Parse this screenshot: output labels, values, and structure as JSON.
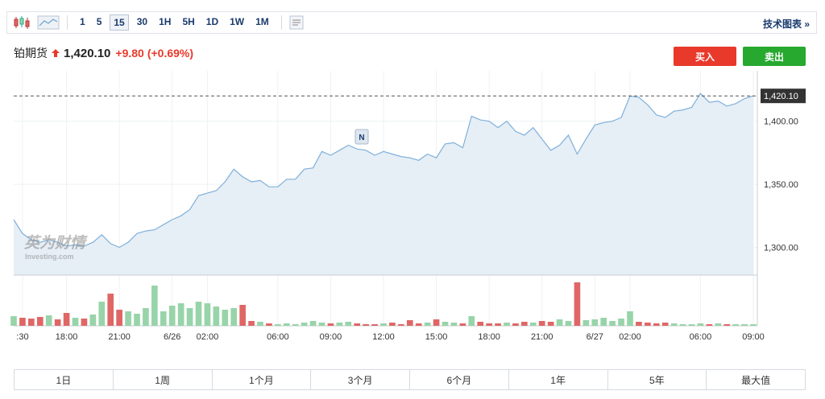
{
  "toolbar": {
    "intervals": [
      "1",
      "5",
      "15",
      "30",
      "1H",
      "5H",
      "1D",
      "1W",
      "1M"
    ],
    "active": "15",
    "link": "技术图表 »"
  },
  "header": {
    "name": "铂期货",
    "price": "1,420.10",
    "change": "+9.80",
    "change_pct": "(+0.69%)",
    "buy": "买入",
    "sell": "卖出"
  },
  "watermark": {
    "brand": "英为财情",
    "site": "Investing.com"
  },
  "annotation": "N",
  "periods": [
    "1日",
    "1周",
    "1个月",
    "3个月",
    "6个月",
    "1年",
    "5年",
    "最大值"
  ],
  "chart_data": {
    "type": "area",
    "color": "#7fb0d9",
    "fill": "#e6eef6",
    "grid": true,
    "categories": [
      null,
      ":30",
      null,
      null,
      null,
      null,
      "18:00",
      null,
      null,
      null,
      null,
      null,
      "21:00",
      null,
      null,
      null,
      null,
      null,
      "6/26",
      null,
      null,
      null,
      "02:00",
      null,
      null,
      null,
      null,
      null,
      null,
      null,
      "06:00",
      null,
      null,
      null,
      null,
      null,
      "09:00",
      null,
      null,
      null,
      null,
      null,
      "12:00",
      null,
      null,
      null,
      null,
      null,
      "15:00",
      null,
      null,
      null,
      null,
      null,
      "18:00",
      null,
      null,
      null,
      null,
      null,
      "21:00",
      null,
      null,
      null,
      null,
      null,
      "6/27",
      null,
      null,
      null,
      "02:00",
      null,
      null,
      null,
      null,
      null,
      null,
      null,
      "06:00",
      null,
      null,
      null,
      null,
      null,
      "09:00"
    ],
    "values": [
      1322,
      1311,
      1306,
      1304,
      1306,
      1304,
      1301,
      1302,
      1301,
      1304,
      1310,
      1303,
      1300,
      1304,
      1311,
      1313,
      1314,
      1318,
      1322,
      1325,
      1330,
      1341,
      1343,
      1345,
      1352,
      1362,
      1356,
      1352,
      1353,
      1348,
      1348,
      1354,
      1354,
      1362,
      1363,
      1376,
      1373,
      1377,
      1381,
      1378,
      1377,
      1373,
      1376,
      1374,
      1372,
      1371,
      1369,
      1374,
      1371,
      1382,
      1383,
      1379,
      1404,
      1401,
      1400,
      1395,
      1400,
      1392,
      1389,
      1395,
      1386,
      1377,
      1381,
      1389,
      1374,
      1386,
      1397,
      1399,
      1400,
      1403,
      1420,
      1419,
      1413,
      1405,
      1403,
      1408,
      1409,
      1411,
      1422,
      1415,
      1416,
      1412,
      1414,
      1418,
      1420.1
    ],
    "ylim": [
      1278,
      1440
    ],
    "yticks": [
      {
        "value": 1300,
        "label": "1,300.00"
      },
      {
        "value": 1350,
        "label": "1,350.00"
      },
      {
        "value": 1400,
        "label": "1,400.00"
      }
    ],
    "last_price": {
      "value": 1420.1,
      "label": "1,420.10"
    },
    "volume": {
      "axis": "y2",
      "up_color": "#98d4a9",
      "down_color": "#e06666",
      "values": [
        12,
        10,
        9,
        11,
        13,
        8,
        16,
        10,
        9,
        14,
        30,
        40,
        20,
        18,
        15,
        22,
        50,
        18,
        25,
        28,
        22,
        30,
        28,
        24,
        20,
        22,
        26,
        6,
        5,
        3,
        2,
        3,
        2,
        4,
        6,
        4,
        3,
        4,
        5,
        3,
        2,
        2,
        3,
        4,
        2,
        7,
        3,
        4,
        8,
        5,
        4,
        3,
        12,
        5,
        3,
        3,
        4,
        3,
        5,
        4,
        6,
        5,
        8,
        6,
        54,
        7,
        8,
        10,
        6,
        9,
        18,
        5,
        4,
        3,
        4,
        3,
        2,
        2,
        3,
        2,
        3,
        2,
        2,
        2,
        2
      ]
    },
    "y2lim": [
      0,
      60
    ]
  }
}
